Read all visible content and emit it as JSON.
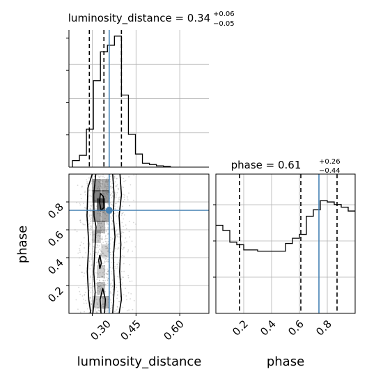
{
  "colors": {
    "truth": "#4682b4",
    "hist": "#000000",
    "grid": "#b0b0b0",
    "scatter": "#8c8c8c"
  },
  "chart_data": {
    "type": "corner",
    "panels": [
      {
        "id": "lum-hist",
        "type": "step-histogram",
        "variable": "luminosity_distance",
        "title": {
          "prefix": "luminosity_distance = 0.34",
          "plus": "+0.06",
          "minus": "−0.05"
        },
        "xlim": [
          0.22,
          0.7
        ],
        "bins": [
          0.232,
          0.256,
          0.28,
          0.304,
          0.328,
          0.352,
          0.376,
          0.4,
          0.424,
          0.448,
          0.472,
          0.496,
          0.52,
          0.544,
          0.568
        ],
        "counts": [
          0.05,
          0.09,
          0.29,
          0.66,
          0.88,
          0.93,
          1.0,
          0.55,
          0.25,
          0.1,
          0.03,
          0.02,
          0.01,
          0.005
        ],
        "quantiles": [
          0.29,
          0.34,
          0.4
        ],
        "truth": 0.358
      },
      {
        "id": "phase-hist",
        "type": "step-histogram",
        "variable": "phase",
        "title": {
          "prefix": "phase = 0.61",
          "plus": "+0.26",
          "minus": "−0.44"
        },
        "xlim": [
          0.0,
          1.0
        ],
        "bins": [
          0.0,
          0.05,
          0.1,
          0.15,
          0.2,
          0.25,
          0.3,
          0.35,
          0.4,
          0.45,
          0.5,
          0.55,
          0.6,
          0.65,
          0.7,
          0.75,
          0.8,
          0.85,
          0.9,
          0.95,
          1.0
        ],
        "counts": [
          0.68,
          0.64,
          0.55,
          0.53,
          0.49,
          0.49,
          0.48,
          0.48,
          0.48,
          0.48,
          0.54,
          0.58,
          0.61,
          0.75,
          0.8,
          0.87,
          0.86,
          0.84,
          0.82,
          0.79
        ],
        "quantiles": [
          0.17,
          0.61,
          0.87
        ],
        "truth": 0.74
      },
      {
        "id": "joint",
        "type": "2d-density",
        "x": "luminosity_distance",
        "y": "phase",
        "xlim": [
          0.22,
          0.7
        ],
        "ylim": [
          0.0,
          1.0
        ],
        "truth": {
          "x": 0.358,
          "y": 0.74
        },
        "x_ticks": [
          0.3,
          0.45,
          0.6
        ],
        "y_ticks": [
          0.2,
          0.4,
          0.6,
          0.8
        ]
      }
    ],
    "x_tick_labels": {
      "lum": [
        "0.30",
        "0.45",
        "0.60"
      ],
      "phase": [
        "0.2",
        "0.4",
        "0.6",
        "0.8"
      ]
    },
    "y_tick_labels": [
      "0.2",
      "0.4",
      "0.6",
      "0.8"
    ],
    "xlabels": [
      "luminosity_distance",
      "phase"
    ],
    "ylabel": "phase",
    "grid": true
  }
}
